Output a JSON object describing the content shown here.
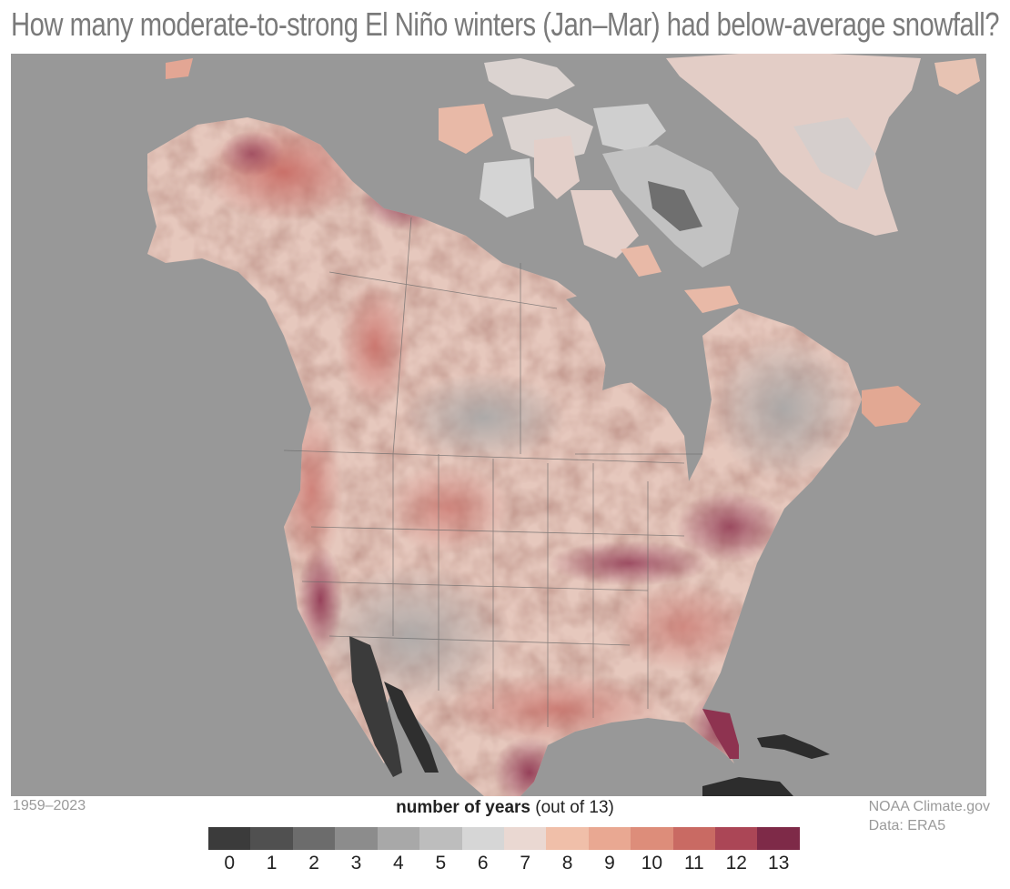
{
  "title": "How many moderate-to-strong El Niño winters (Jan–Mar) had below-average snowfall?",
  "period": "1959–2023",
  "legend": {
    "title_bold": "number of years",
    "title_rest": " (out of 13)",
    "ticks": [
      "0",
      "1",
      "2",
      "3",
      "4",
      "5",
      "6",
      "7",
      "8",
      "9",
      "10",
      "11",
      "12",
      "13"
    ],
    "colors": [
      "#3b3b3b",
      "#505050",
      "#6c6c6c",
      "#8c8c8c",
      "#a8a8a8",
      "#bdbdbd",
      "#d6d6d6",
      "#ead8d2",
      "#f0bfa9",
      "#e9a892",
      "#dd8d7a",
      "#c96a63",
      "#ab4656",
      "#7e2a48"
    ]
  },
  "credit": {
    "line1": "NOAA Climate.gov",
    "line2": "Data: ERA5"
  },
  "map": {
    "ocean_color": "#989898",
    "border_color": "#5e5e5e"
  }
}
